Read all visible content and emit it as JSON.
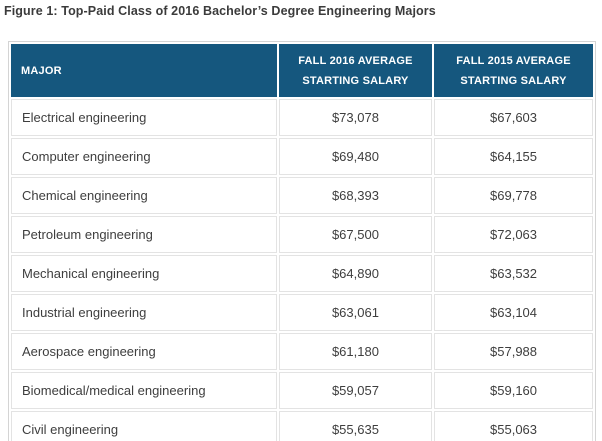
{
  "figure_title": "Figure 1: Top-Paid Class of 2016 Bachelor’s Degree Engineering Majors",
  "table": {
    "headers": {
      "major": "MAJOR",
      "fall_2016": "FALL 2016 AVERAGE STARTING SALARY",
      "fall_2015": "FALL 2015 AVERAGE STARTING SALARY"
    },
    "rows": [
      {
        "major": "Electrical engineering",
        "salary_2016": "$73,078",
        "salary_2015": "$67,603"
      },
      {
        "major": "Computer engineering",
        "salary_2016": "$69,480",
        "salary_2015": "$64,155"
      },
      {
        "major": "Chemical engineering",
        "salary_2016": "$68,393",
        "salary_2015": "$69,778"
      },
      {
        "major": "Petroleum engineering",
        "salary_2016": "$67,500",
        "salary_2015": "$72,063"
      },
      {
        "major": "Mechanical engineering",
        "salary_2016": "$64,890",
        "salary_2015": "$63,532"
      },
      {
        "major": "Industrial engineering",
        "salary_2016": "$63,061",
        "salary_2015": "$63,104"
      },
      {
        "major": "Aerospace engineering",
        "salary_2016": "$61,180",
        "salary_2015": "$57,988"
      },
      {
        "major": "Biomedical/medical engineering",
        "salary_2016": "$59,057",
        "salary_2015": "$59,160"
      },
      {
        "major": "Civil engineering",
        "salary_2016": "$55,635",
        "salary_2015": "$55,063"
      }
    ]
  },
  "colors": {
    "background": "#ffffff",
    "header_bg": "#15577e",
    "header_text": "#ffffff",
    "title_text": "#3b3b3b",
    "body_text": "#3e3e3e",
    "cell_border": "#e3e3e3",
    "outer_border": "#d4d4d4"
  },
  "chart_data": {
    "type": "table",
    "title": "Figure 1: Top-Paid Class of 2016 Bachelor’s Degree Engineering Majors",
    "columns": [
      "MAJOR",
      "FALL 2016 AVERAGE STARTING SALARY",
      "FALL 2015 AVERAGE STARTING SALARY"
    ],
    "categories": [
      "Electrical engineering",
      "Computer engineering",
      "Chemical engineering",
      "Petroleum engineering",
      "Mechanical engineering",
      "Industrial engineering",
      "Aerospace engineering",
      "Biomedical/medical engineering",
      "Civil engineering"
    ],
    "series": [
      {
        "name": "Fall 2016 Average Starting Salary",
        "values": [
          73078,
          69480,
          68393,
          67500,
          64890,
          63061,
          61180,
          59057,
          55635
        ]
      },
      {
        "name": "Fall 2015 Average Starting Salary",
        "values": [
          67603,
          64155,
          69778,
          72063,
          63532,
          63104,
          57988,
          59160,
          55063
        ]
      }
    ]
  }
}
